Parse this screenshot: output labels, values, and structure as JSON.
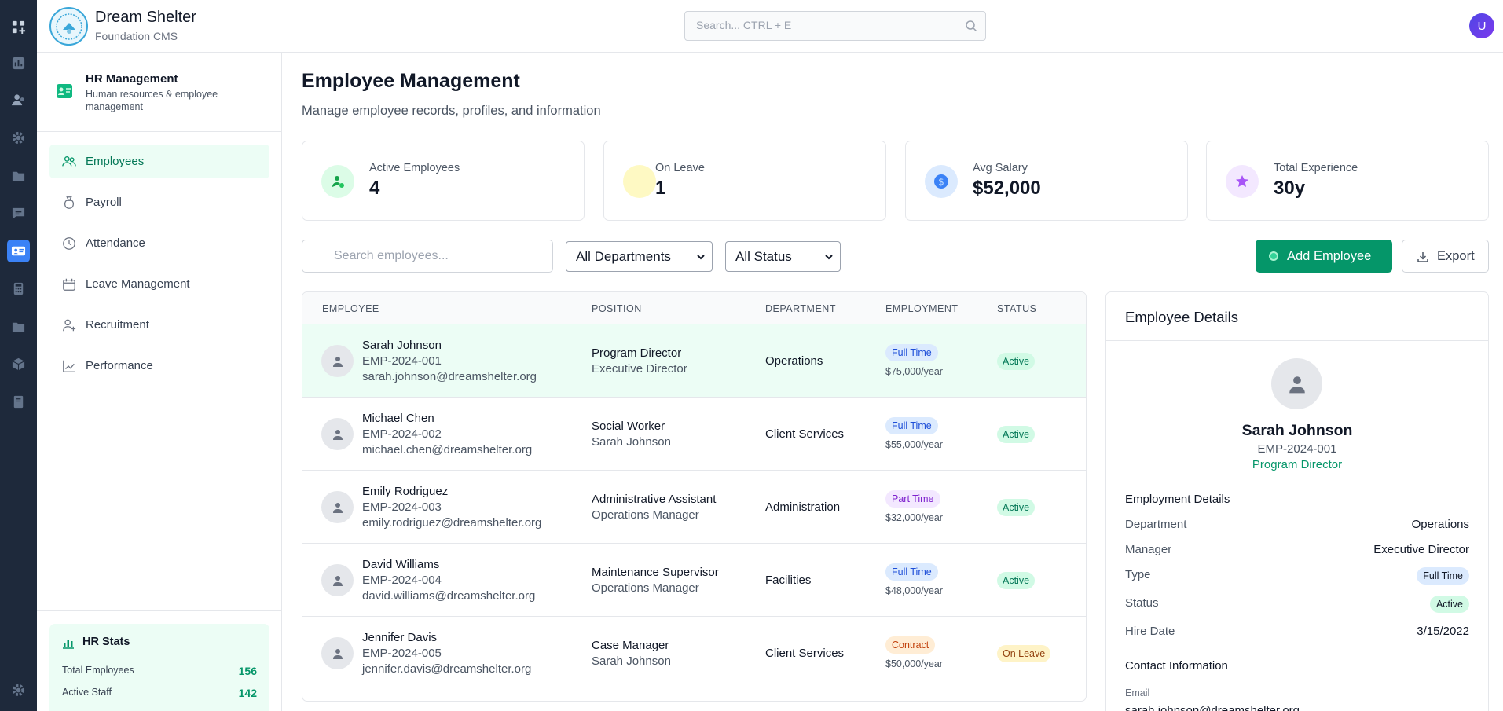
{
  "app": {
    "title": "Dream Shelter",
    "subtitle": "Foundation CMS"
  },
  "header": {
    "search_placeholder": "Search... CTRL + E",
    "avatar_initial": "U"
  },
  "rail": {
    "items": [
      {
        "icon": "apps-grid-icon"
      },
      {
        "icon": "chart-icon"
      },
      {
        "icon": "users-icon"
      },
      {
        "icon": "gear-icon"
      },
      {
        "icon": "folder-icon"
      },
      {
        "icon": "message-icon"
      },
      {
        "icon": "id-card-icon",
        "active": true
      },
      {
        "icon": "calculator-icon"
      },
      {
        "icon": "folder-icon"
      },
      {
        "icon": "box-icon"
      },
      {
        "icon": "book-icon"
      }
    ],
    "bottom_icon": "gear-icon"
  },
  "module": {
    "title": "HR Management",
    "subtitle": "Human resources & employee management",
    "nav": [
      {
        "label": "Employees",
        "icon": "users-icon",
        "active": true
      },
      {
        "label": "Payroll",
        "icon": "money-bag-icon"
      },
      {
        "label": "Attendance",
        "icon": "clock-icon"
      },
      {
        "label": "Leave Management",
        "icon": "calendar-icon"
      },
      {
        "label": "Recruitment",
        "icon": "user-plus-icon"
      },
      {
        "label": "Performance",
        "icon": "trend-chart-icon"
      }
    ],
    "stats": {
      "title": "HR Stats",
      "rows": [
        {
          "label": "Total Employees",
          "value": "156"
        },
        {
          "label": "Active Staff",
          "value": "142"
        }
      ]
    }
  },
  "page": {
    "title": "Employee Management",
    "subtitle": "Manage employee records, profiles, and information"
  },
  "stat_cards": [
    {
      "label": "Active Employees",
      "value": "4",
      "icon": "user-check-icon",
      "color": "#dcfce7"
    },
    {
      "label": "On Leave",
      "value": "1",
      "icon": "leave-icon",
      "color": "#fef9c3"
    },
    {
      "label": "Avg Salary",
      "value": "$52,000",
      "icon": "dollar-icon",
      "color": "#dbeafe"
    },
    {
      "label": "Total Experience",
      "value": "30y",
      "icon": "star-icon",
      "color": "#f3e8ff"
    }
  ],
  "toolbar": {
    "search_placeholder": "Search employees...",
    "department_filter": "All Departments",
    "status_filter": "All Status",
    "add_label": "Add Employee",
    "export_label": "Export"
  },
  "table": {
    "columns": [
      "EMPLOYEE",
      "POSITION",
      "DEPARTMENT",
      "EMPLOYMENT",
      "STATUS"
    ],
    "rows": [
      {
        "name": "Sarah Johnson",
        "id": "EMP-2024-001",
        "email": "sarah.johnson@dreamshelter.org",
        "position": "Program Director",
        "reports_to": "Executive Director",
        "department": "Operations",
        "type": "Full Time",
        "salary": "$75,000/year",
        "status": "Active"
      },
      {
        "name": "Michael Chen",
        "id": "EMP-2024-002",
        "email": "michael.chen@dreamshelter.org",
        "position": "Social Worker",
        "reports_to": "Sarah Johnson",
        "department": "Client Services",
        "type": "Full Time",
        "salary": "$55,000/year",
        "status": "Active"
      },
      {
        "name": "Emily Rodriguez",
        "id": "EMP-2024-003",
        "email": "emily.rodriguez@dreamshelter.org",
        "position": "Administrative Assistant",
        "reports_to": "Operations Manager",
        "department": "Administration",
        "type": "Part Time",
        "salary": "$32,000/year",
        "status": "Active"
      },
      {
        "name": "David Williams",
        "id": "EMP-2024-004",
        "email": "david.williams@dreamshelter.org",
        "position": "Maintenance Supervisor",
        "reports_to": "Operations Manager",
        "department": "Facilities",
        "type": "Full Time",
        "salary": "$48,000/year",
        "status": "Active"
      },
      {
        "name": "Jennifer Davis",
        "id": "EMP-2024-005",
        "email": "jennifer.davis@dreamshelter.org",
        "position": "Case Manager",
        "reports_to": "Sarah Johnson",
        "department": "Client Services",
        "type": "Contract",
        "salary": "$50,000/year",
        "status": "On Leave"
      }
    ]
  },
  "details": {
    "title": "Employee Details",
    "name": "Sarah Johnson",
    "id": "EMP-2024-001",
    "position": "Program Director",
    "employment_heading": "Employment Details",
    "department_label": "Department",
    "department": "Operations",
    "manager_label": "Manager",
    "manager": "Executive Director",
    "type_label": "Type",
    "type": "Full Time",
    "status_label": "Status",
    "status": "Active",
    "hire_label": "Hire Date",
    "hire_date": "3/15/2022",
    "contact_heading": "Contact Information",
    "email_label": "Email",
    "email": "sarah.johnson@dreamshelter.org"
  }
}
